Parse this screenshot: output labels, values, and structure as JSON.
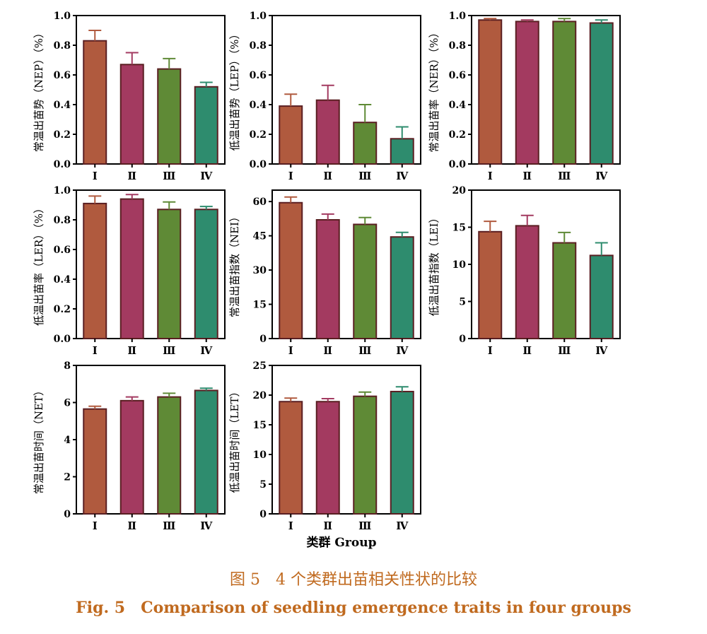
{
  "chart_data": [
    {
      "type": "bar",
      "ylabel": "常温出苗势（NEP）（%）",
      "categories": [
        "Ⅰ",
        "Ⅱ",
        "Ⅲ",
        "Ⅳ"
      ],
      "values": [
        0.83,
        0.67,
        0.64,
        0.52
      ],
      "errors": [
        0.07,
        0.08,
        0.07,
        0.03
      ],
      "ylim": [
        0,
        1
      ],
      "yticks": [
        "0.0",
        "0.2",
        "0.4",
        "0.6",
        "0.8",
        "1.0"
      ]
    },
    {
      "type": "bar",
      "ylabel": "低温出苗势（LEP）（%）",
      "categories": [
        "Ⅰ",
        "Ⅱ",
        "Ⅲ",
        "Ⅳ"
      ],
      "values": [
        0.39,
        0.43,
        0.28,
        0.17
      ],
      "errors": [
        0.08,
        0.1,
        0.12,
        0.08
      ],
      "ylim": [
        0,
        1
      ],
      "yticks": [
        "0.0",
        "0.2",
        "0.4",
        "0.6",
        "0.8",
        "1.0"
      ]
    },
    {
      "type": "bar",
      "ylabel": "常温出苗率（NER）（%）",
      "categories": [
        "Ⅰ",
        "Ⅱ",
        "Ⅲ",
        "Ⅳ"
      ],
      "values": [
        0.97,
        0.96,
        0.96,
        0.95
      ],
      "errors": [
        0.01,
        0.01,
        0.02,
        0.02
      ],
      "ylim": [
        0,
        1
      ],
      "yticks": [
        "0.0",
        "0.2",
        "0.4",
        "0.6",
        "0.8",
        "1.0"
      ]
    },
    {
      "type": "bar",
      "ylabel": "低温出苗率（LER）（%）",
      "categories": [
        "Ⅰ",
        "Ⅱ",
        "Ⅲ",
        "Ⅳ"
      ],
      "values": [
        0.91,
        0.94,
        0.87,
        0.87
      ],
      "errors": [
        0.05,
        0.03,
        0.05,
        0.02
      ],
      "ylim": [
        0,
        1
      ],
      "yticks": [
        "0.0",
        "0.2",
        "0.4",
        "0.6",
        "0.8",
        "1.0"
      ]
    },
    {
      "type": "bar",
      "ylabel": "常温出苗指数（NEI）",
      "categories": [
        "Ⅰ",
        "Ⅱ",
        "Ⅲ",
        "Ⅳ"
      ],
      "values": [
        59.5,
        52,
        50,
        44.5
      ],
      "errors": [
        2.5,
        2.5,
        3,
        2
      ],
      "ylim": [
        0,
        65
      ],
      "yticks": [
        "0",
        "15",
        "30",
        "45",
        "60"
      ]
    },
    {
      "type": "bar",
      "ylabel": "低温出苗指数（LEI）",
      "categories": [
        "Ⅰ",
        "Ⅱ",
        "Ⅲ",
        "Ⅳ"
      ],
      "values": [
        14.4,
        15.2,
        12.9,
        11.2
      ],
      "errors": [
        1.4,
        1.4,
        1.4,
        1.7
      ],
      "ylim": [
        0,
        20
      ],
      "yticks": [
        "0",
        "5",
        "10",
        "15",
        "20"
      ]
    },
    {
      "type": "bar",
      "ylabel": "常温出苗时间（NET）",
      "categories": [
        "Ⅰ",
        "Ⅱ",
        "Ⅲ",
        "Ⅳ"
      ],
      "values": [
        5.65,
        6.1,
        6.3,
        6.65
      ],
      "errors": [
        0.15,
        0.2,
        0.2,
        0.12
      ],
      "ylim": [
        0,
        8
      ],
      "yticks": [
        "0",
        "2",
        "4",
        "6",
        "8"
      ]
    },
    {
      "type": "bar",
      "ylabel": "低温出苗时间（LET）",
      "categories": [
        "Ⅰ",
        "Ⅱ",
        "Ⅲ",
        "Ⅳ"
      ],
      "values": [
        18.9,
        18.9,
        19.8,
        20.6
      ],
      "errors": [
        0.6,
        0.5,
        0.7,
        0.8
      ],
      "ylim": [
        0,
        25
      ],
      "yticks": [
        "0",
        "5",
        "10",
        "15",
        "20",
        "25"
      ]
    }
  ],
  "colors": {
    "bars": [
      "#b05a3e",
      "#a33a60",
      "#5f8a36",
      "#2e8c6e"
    ],
    "bar_edge": "#5a1f22",
    "error": [
      "#b05a3e",
      "#a33a60",
      "#5f8a36",
      "#2e8c6e"
    ],
    "caption": "#c06a1f"
  },
  "xlabel": "类群 Group",
  "caption": {
    "zh": "图 5　4 个类群出苗相关性状的比较",
    "en": "Fig. 5　Comparison of seedling emergence traits in four groups"
  }
}
